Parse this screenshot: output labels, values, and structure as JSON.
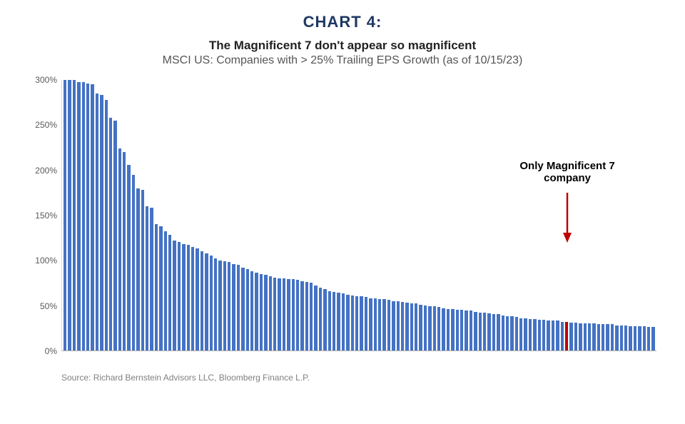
{
  "chart": {
    "number_label": "CHART 4:",
    "number_color": "#1f3864",
    "number_fontsize": 22,
    "title": "The Magnificent 7 don't appear so magnificent",
    "title_fontsize": 17,
    "title_color": "#222222",
    "subtitle": "MSCI US: Companies with > 25% Trailing EPS Growth (as of 10/15/23)",
    "subtitle_fontsize": 16,
    "subtitle_color": "#555555",
    "type": "bar",
    "ylim": [
      0,
      300
    ],
    "ytick_step": 50,
    "ytick_suffix": "%",
    "ytick_labels": [
      "0%",
      "50%",
      "100%",
      "150%",
      "200%",
      "250%",
      "300%"
    ],
    "bar_color": "#4472c4",
    "highlight_color": "#c00000",
    "highlight_index": 110,
    "bar_count": 130,
    "values": [
      300,
      300,
      300,
      298,
      298,
      296,
      295,
      285,
      283,
      278,
      258,
      255,
      224,
      220,
      206,
      195,
      180,
      178,
      160,
      158,
      140,
      138,
      132,
      128,
      122,
      120,
      118,
      117,
      115,
      113,
      110,
      108,
      105,
      102,
      100,
      99,
      98,
      96,
      95,
      92,
      90,
      88,
      86,
      85,
      84,
      82,
      81,
      80,
      80,
      79,
      79,
      78,
      77,
      76,
      75,
      72,
      70,
      68,
      66,
      65,
      64,
      63,
      62,
      61,
      60,
      60,
      59,
      58,
      58,
      57,
      57,
      56,
      55,
      55,
      54,
      53,
      52,
      52,
      51,
      50,
      49,
      49,
      48,
      47,
      46,
      46,
      45,
      45,
      44,
      44,
      43,
      42,
      42,
      41,
      40,
      40,
      39,
      38,
      38,
      37,
      36,
      36,
      35,
      35,
      34,
      34,
      33,
      33,
      33,
      32,
      32,
      31,
      31,
      30,
      30,
      30,
      30,
      29,
      29,
      29,
      29,
      28,
      28,
      28,
      27,
      27,
      27,
      27,
      26,
      26
    ],
    "callout": {
      "text_line1": "Only Magnificent 7",
      "text_line2": "company",
      "fontsize": 15,
      "color": "#000000",
      "arrow_color": "#c00000"
    },
    "source": "Source: Richard Bernstein Advisors LLC, Bloomberg Finance L.P."
  }
}
